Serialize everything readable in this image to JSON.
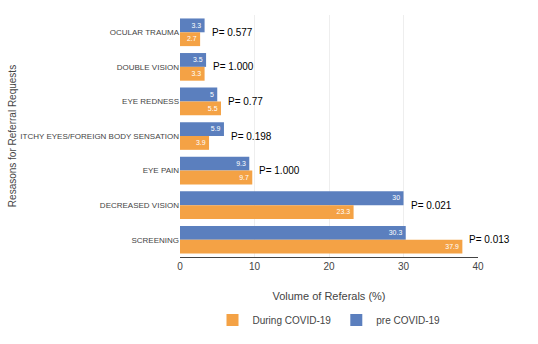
{
  "chart_data": {
    "type": "bar",
    "orientation": "horizontal",
    "categories": [
      "OCULAR TRAUMA",
      "DOUBLE VISION",
      "EYE REDNESS",
      "ITCHY EYES/FOREIGN BODY SENSATION",
      "EYE PAIN",
      "DECREASED VISION",
      "SCREENING"
    ],
    "series": [
      {
        "name": "During COVID-19",
        "color": "#F4A245",
        "values": [
          2.7,
          3.3,
          5.5,
          3.9,
          9.7,
          23.3,
          37.9
        ]
      },
      {
        "name": "pre COVID-19",
        "color": "#5B7FBE",
        "values": [
          3.3,
          3.5,
          5.0,
          5.9,
          9.3,
          30.0,
          30.3
        ]
      }
    ],
    "annotations": [
      "P= 0.577",
      "P= 1.000",
      "P= 0.77",
      "P= 0.198",
      "P= 1.000",
      "P= 0.021",
      "P= 0.013"
    ],
    "xlabel": "Volume of Referals (%)",
    "ylabel": "Resasons for Referral Requests",
    "xlim": [
      0,
      40
    ],
    "xticks": [
      0,
      10,
      20,
      30,
      40
    ],
    "data_labels": true,
    "grid": true,
    "legend": "bottom"
  }
}
